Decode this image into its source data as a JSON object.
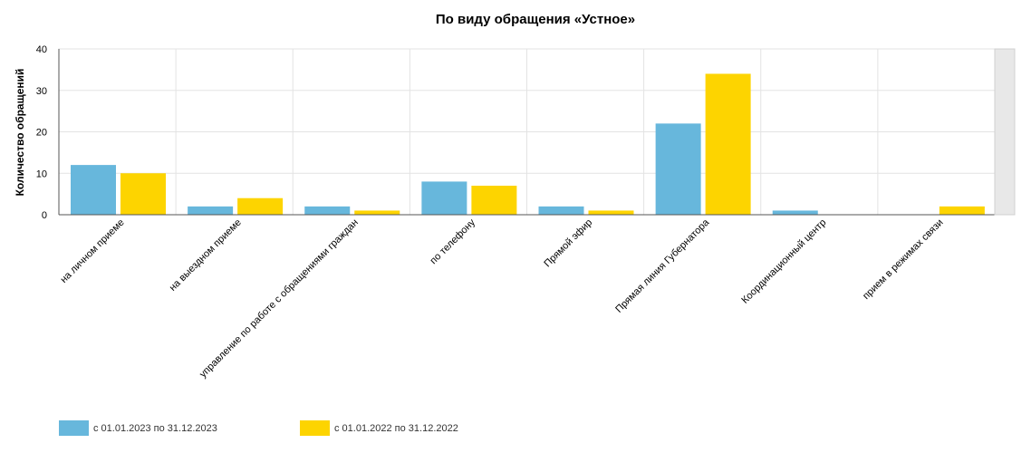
{
  "chart_data": {
    "type": "bar",
    "title": "По виду обращения «Устное»",
    "ylabel": "Количество обращений",
    "xlabel": "",
    "ylim": [
      0,
      40
    ],
    "yticks": [
      0,
      10,
      20,
      30,
      40
    ],
    "grid": true,
    "legend_position": "bottom-left",
    "categories": [
      "на личном приеме",
      "на выездном приеме",
      "управление по работе с обращениями граждан",
      "по телефону",
      "Прямой эфир",
      "Прямая линия Губернатора",
      "Координационный центр",
      "прием в режимах связи"
    ],
    "series": [
      {
        "name": "с 01.01.2023 по 31.12.2023",
        "color": "#67b7dc",
        "values": [
          12,
          2,
          2,
          8,
          2,
          22,
          1,
          0
        ]
      },
      {
        "name": "с 01.01.2022 по 31.12.2022",
        "color": "#fdd400",
        "values": [
          10,
          4,
          1,
          7,
          1,
          34,
          0,
          2
        ]
      }
    ]
  }
}
